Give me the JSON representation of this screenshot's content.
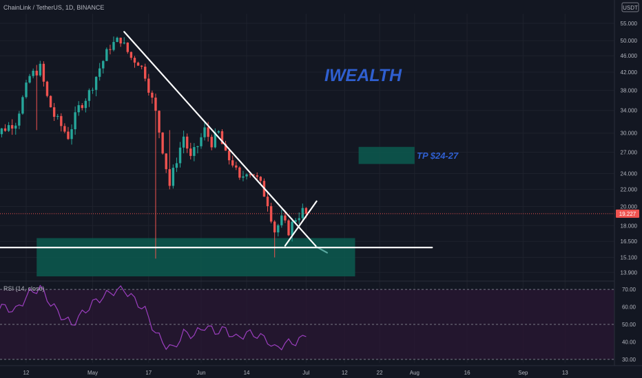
{
  "header": {
    "symbol_info": "ChainLink / TetherUS, 1D, BINANCE",
    "currency_badge": "USDT"
  },
  "watermark": {
    "text": "IWEALTH",
    "color": "#2f5fd0"
  },
  "annotations": {
    "tp_label": "TP $24-27"
  },
  "colors": {
    "background": "#131722",
    "up": "#26a69a",
    "down": "#ef5350",
    "zone": "#0c5a4f",
    "trendline": "#ffffff",
    "rsi_line": "#9c3fc0",
    "rsi_band": "#2a1733",
    "price_tag": "#ef5350"
  },
  "chart_data": [
    {
      "type": "candlestick",
      "y_scale": "log",
      "ylim": [
        13.3,
        58
      ],
      "y_ticks": [
        "55.000",
        "50.000",
        "46.000",
        "42.000",
        "38.000",
        "34.000",
        "30.000",
        "27.000",
        "24.000",
        "22.000",
        "20.000",
        "18.000",
        "16.500",
        "15.100",
        "13.900"
      ],
      "y_tick_values": [
        55,
        50,
        46,
        42,
        38,
        34,
        30,
        27,
        24,
        22,
        20,
        18,
        16.5,
        15.1,
        13.9
      ],
      "x_ticks": [
        "12",
        "May",
        "17",
        "Jun",
        "14",
        "Jul",
        "12",
        "22",
        "Aug",
        "16",
        "Sep",
        "13"
      ],
      "x_tick_dates": [
        "2021-04-12",
        "2021-05-01",
        "2021-05-17",
        "2021-06-01",
        "2021-06-14",
        "2021-07-01",
        "2021-07-12",
        "2021-07-22",
        "2021-08-01",
        "2021-08-16",
        "2021-09-01",
        "2021-09-13"
      ],
      "last_price": "19.227",
      "last_price_value": 19.227,
      "grid": true,
      "waypoints": [
        [
          "2021-04-01",
          28.5
        ],
        [
          "2021-04-05",
          30.5
        ],
        [
          "2021-04-09",
          32.0
        ],
        [
          "2021-04-13",
          41.0
        ],
        [
          "2021-04-16",
          43.0
        ],
        [
          "2021-04-18",
          36.5
        ],
        [
          "2021-04-20",
          33.0
        ],
        [
          "2021-04-24",
          29.5
        ],
        [
          "2021-04-27",
          34.5
        ],
        [
          "2021-04-30",
          37.5
        ],
        [
          "2021-05-03",
          43.0
        ],
        [
          "2021-05-06",
          48.5
        ],
        [
          "2021-05-09",
          50.5
        ],
        [
          "2021-05-10",
          48.5
        ],
        [
          "2021-05-12",
          45.5
        ],
        [
          "2021-05-14",
          44.5
        ],
        [
          "2021-05-16",
          41.5
        ],
        [
          "2021-05-19",
          33.5
        ],
        [
          "2021-05-21",
          27.5
        ],
        [
          "2021-05-23",
          22.5
        ],
        [
          "2021-05-25",
          26.0
        ],
        [
          "2021-05-27",
          29.5
        ],
        [
          "2021-05-29",
          26.0
        ],
        [
          "2021-05-31",
          28.0
        ],
        [
          "2021-06-02",
          30.5
        ],
        [
          "2021-06-04",
          28.5
        ],
        [
          "2021-06-06",
          30.0
        ],
        [
          "2021-06-08",
          26.5
        ],
        [
          "2021-06-10",
          25.5
        ],
        [
          "2021-06-12",
          23.0
        ],
        [
          "2021-06-14",
          24.5
        ],
        [
          "2021-06-16",
          24.0
        ],
        [
          "2021-06-18",
          22.5
        ],
        [
          "2021-06-20",
          20.5
        ],
        [
          "2021-06-22",
          17.5
        ],
        [
          "2021-06-24",
          18.6
        ],
        [
          "2021-06-26",
          17.5
        ],
        [
          "2021-06-28",
          18.8
        ],
        [
          "2021-06-30",
          19.5
        ],
        [
          "2021-07-01",
          19.227
        ]
      ],
      "spikes": [
        {
          "date": "2021-05-19",
          "low": 15.0
        },
        {
          "date": "2021-06-22",
          "low": 15.1
        },
        {
          "date": "2021-04-15",
          "low": 30.5
        },
        {
          "date": "2021-05-23",
          "high": 30.5
        }
      ],
      "zones": [
        {
          "label": "support",
          "from": "2021-04-15",
          "to": "2021-07-15",
          "low": 13.6,
          "high": 16.8
        },
        {
          "label": "take-profit",
          "from": "2021-07-16",
          "to": "2021-08-01",
          "low": 25.3,
          "high": 27.8
        }
      ],
      "trendlines": [
        {
          "from": [
            "2021-05-10",
            52.5
          ],
          "to": [
            "2021-07-04",
            16.0
          ],
          "color": "#ffffff"
        },
        {
          "from": [
            "2021-07-04",
            16.0
          ],
          "to": [
            "2021-07-07",
            15.5
          ],
          "color": "#5aa8a0"
        },
        {
          "from": [
            "2021-03-25",
            15.95
          ],
          "to": [
            "2021-08-06",
            15.95
          ],
          "color": "#ffffff"
        },
        {
          "from": [
            "2021-06-25",
            16.1
          ],
          "to": [
            "2021-07-04",
            20.6
          ],
          "color": "#ffffff"
        }
      ]
    },
    {
      "type": "line",
      "title": "RSI (14, close)",
      "ylim": [
        28,
        74
      ],
      "y_ticks": [
        "70.00",
        "60.00",
        "50.00",
        "40.00",
        "30.00"
      ],
      "y_tick_values": [
        70,
        60,
        50,
        40,
        30
      ],
      "band": [
        30,
        70
      ],
      "levels": [
        70,
        50,
        30
      ],
      "series": [
        {
          "values": [
            [
              "2021-04-01",
              56
            ],
            [
              "2021-04-05",
              60
            ],
            [
              "2021-04-09",
              58
            ],
            [
              "2021-04-13",
              68
            ],
            [
              "2021-04-16",
              71
            ],
            [
              "2021-04-19",
              62
            ],
            [
              "2021-04-22",
              55
            ],
            [
              "2021-04-25",
              50
            ],
            [
              "2021-04-28",
              56
            ],
            [
              "2021-05-01",
              62
            ],
            [
              "2021-05-04",
              66
            ],
            [
              "2021-05-07",
              69
            ],
            [
              "2021-05-10",
              70
            ],
            [
              "2021-05-13",
              64
            ],
            [
              "2021-05-16",
              58
            ],
            [
              "2021-05-19",
              45
            ],
            [
              "2021-05-22",
              38
            ],
            [
              "2021-05-24",
              36
            ],
            [
              "2021-05-27",
              45
            ],
            [
              "2021-05-30",
              44
            ],
            [
              "2021-06-02",
              49
            ],
            [
              "2021-06-05",
              46
            ],
            [
              "2021-06-08",
              47
            ],
            [
              "2021-06-11",
              42
            ],
            [
              "2021-06-14",
              45
            ],
            [
              "2021-06-17",
              44
            ],
            [
              "2021-06-20",
              41
            ],
            [
              "2021-06-22",
              36
            ],
            [
              "2021-06-25",
              39
            ],
            [
              "2021-06-28",
              40
            ],
            [
              "2021-07-01",
              43
            ]
          ]
        }
      ]
    }
  ]
}
